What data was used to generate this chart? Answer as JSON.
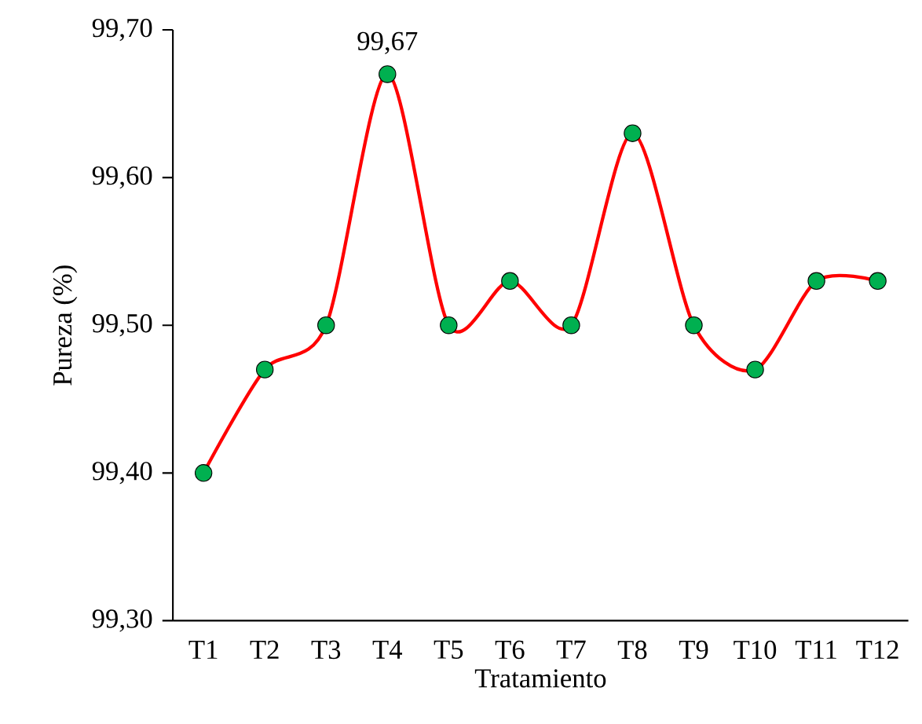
{
  "chart_data": {
    "type": "line",
    "xlabel": "Tratamiento",
    "ylabel": "Pureza (%)",
    "categories": [
      "T1",
      "T2",
      "T3",
      "T4",
      "T5",
      "T6",
      "T7",
      "T8",
      "T9",
      "T10",
      "T11",
      "T12"
    ],
    "series": [
      {
        "color": "#ff0000",
        "colors": [
          "#00b050",
          "#00b050",
          "#00b050",
          "#00b050",
          "#00b050",
          "#00b050",
          "#00b050",
          "#00b050",
          "#00b050",
          "#00b050",
          "#00b050",
          "#00b050"
        ],
        "values": [
          99.4,
          99.47,
          99.5,
          99.67,
          99.5,
          99.53,
          99.5,
          99.63,
          99.5,
          99.47,
          99.53,
          99.53
        ]
      }
    ],
    "marker": "circle",
    "ylim": [
      99.3,
      99.7
    ],
    "yticks": [
      {
        "value": 99.3,
        "label": "99,30"
      },
      {
        "value": 99.4,
        "label": "99,40"
      },
      {
        "value": 99.5,
        "label": "99,50"
      },
      {
        "value": 99.6,
        "label": "99,60"
      },
      {
        "value": 99.7,
        "label": "99,70"
      }
    ],
    "annotations": [
      {
        "text": "99,67",
        "x": "T4",
        "y": 99.67
      }
    ]
  }
}
